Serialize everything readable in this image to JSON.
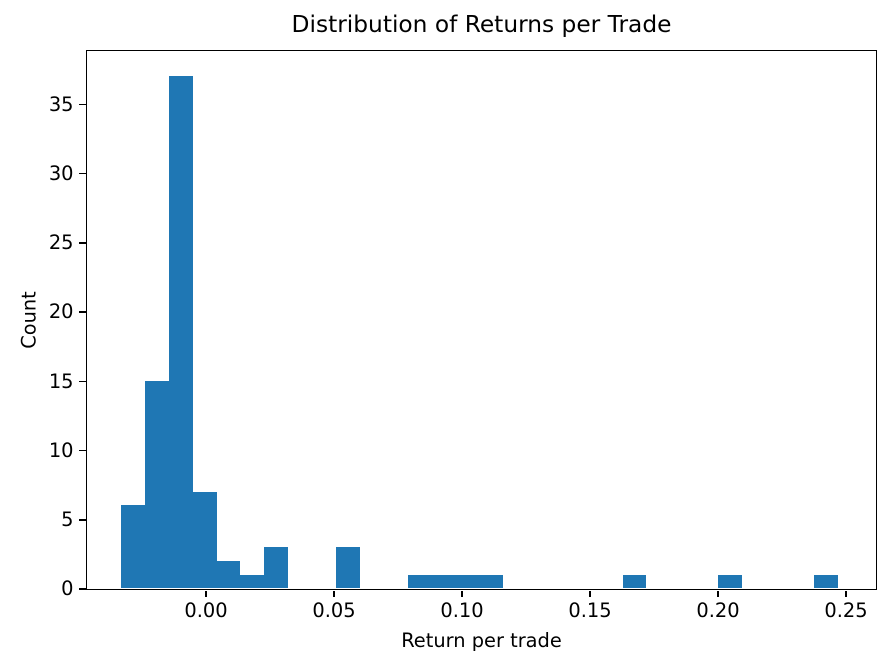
{
  "chart_data": {
    "type": "histogram",
    "title": "Distribution of Returns per Trade",
    "xlabel": "Return per trade",
    "ylabel": "Count",
    "bar_color": "#1f77b4",
    "axis_color": "#000000",
    "n_bins": 30,
    "bin_start": -0.033,
    "bin_width": 0.00933,
    "counts": [
      6,
      15,
      37,
      7,
      2,
      1,
      3,
      0,
      0,
      3,
      0,
      0,
      1,
      1,
      1,
      1,
      0,
      0,
      0,
      0,
      0,
      1,
      0,
      0,
      0,
      1,
      0,
      0,
      0,
      1
    ],
    "xlim": [
      -0.04648,
      0.26172
    ],
    "ylim": [
      0,
      38.85
    ],
    "xticks": [
      {
        "value": 0.0,
        "label": "0.00"
      },
      {
        "value": 0.05,
        "label": "0.05"
      },
      {
        "value": 0.1,
        "label": "0.10"
      },
      {
        "value": 0.15,
        "label": "0.15"
      },
      {
        "value": 0.2,
        "label": "0.20"
      },
      {
        "value": 0.25,
        "label": "0.25"
      }
    ],
    "yticks": [
      {
        "value": 0,
        "label": "0"
      },
      {
        "value": 5,
        "label": "5"
      },
      {
        "value": 10,
        "label": "10"
      },
      {
        "value": 15,
        "label": "15"
      },
      {
        "value": 20,
        "label": "20"
      },
      {
        "value": 25,
        "label": "25"
      },
      {
        "value": 30,
        "label": "30"
      },
      {
        "value": 35,
        "label": "35"
      }
    ],
    "grid": false,
    "legend": null
  }
}
